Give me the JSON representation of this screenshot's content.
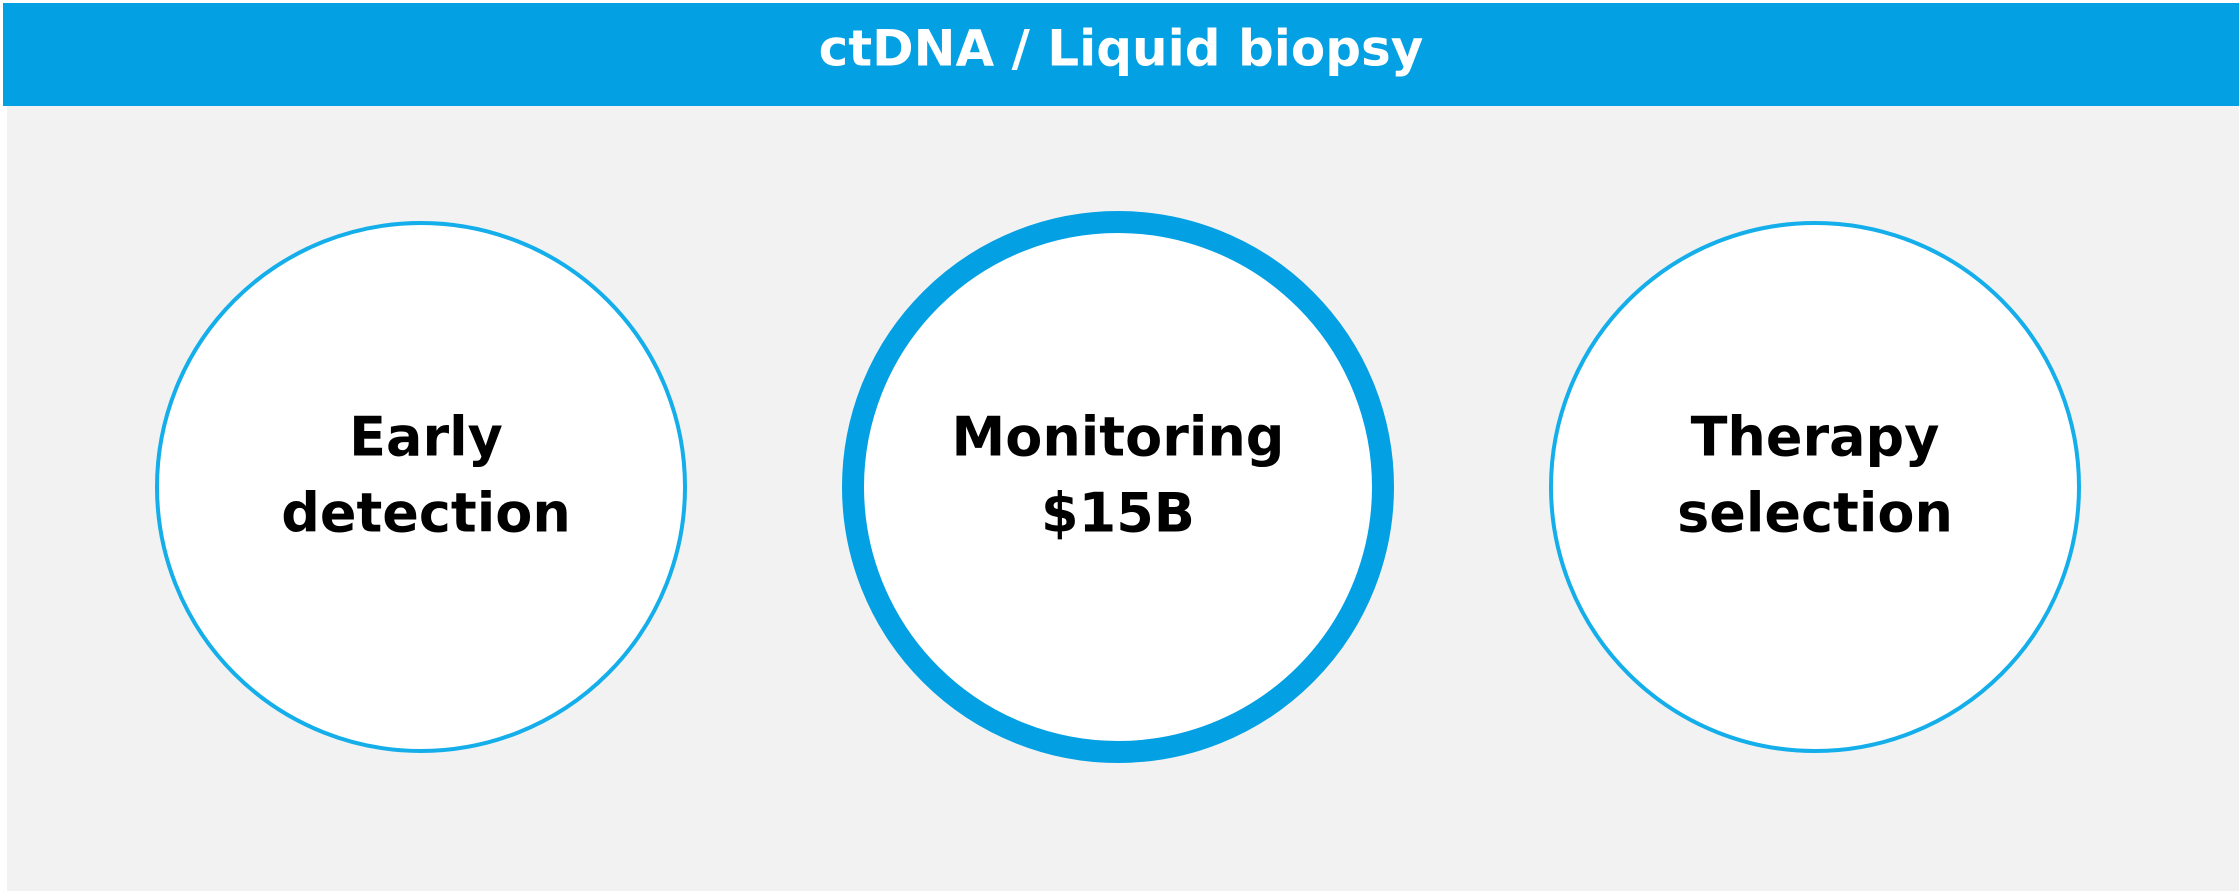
{
  "header": {
    "title": "ctDNA / Liquid biopsy"
  },
  "nodes": [
    {
      "lines": [
        "Early",
        "detection"
      ]
    },
    {
      "lines": [
        "Monitoring",
        "$15B"
      ]
    },
    {
      "lines": [
        "Therapy",
        "selection"
      ]
    }
  ]
}
